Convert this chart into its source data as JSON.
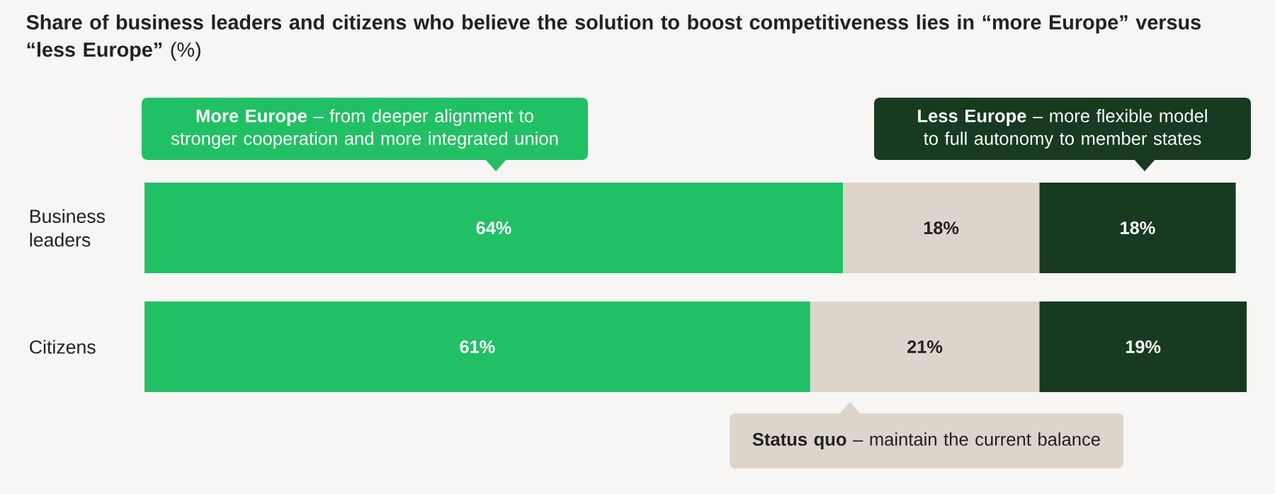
{
  "chart_data": {
    "type": "bar",
    "orientation": "horizontal",
    "stacked": true,
    "title": "**Share of business leaders and citizens who believe the solution to boost competitiveness lies in “more Europe” versus “less Europe”** (%)",
    "categories": [
      "Business leaders",
      "Citizens"
    ],
    "series": [
      {
        "name": "**More Europe** – from deeper alignment to stronger cooperation and more integrated union",
        "color": "#22c064",
        "values": [
          64,
          61
        ],
        "value_labels": [
          "64%",
          "61%"
        ]
      },
      {
        "name": "**Status quo** – maintain the current balance",
        "color": "#ddd5cc",
        "values": [
          18,
          21
        ],
        "value_labels": [
          "18%",
          "21%"
        ]
      },
      {
        "name": "**Less Europe** – more flexible model to full autonomy to member states",
        "color": "#173a20",
        "values": [
          18,
          19
        ],
        "value_labels": [
          "18%",
          "19%"
        ]
      }
    ]
  }
}
